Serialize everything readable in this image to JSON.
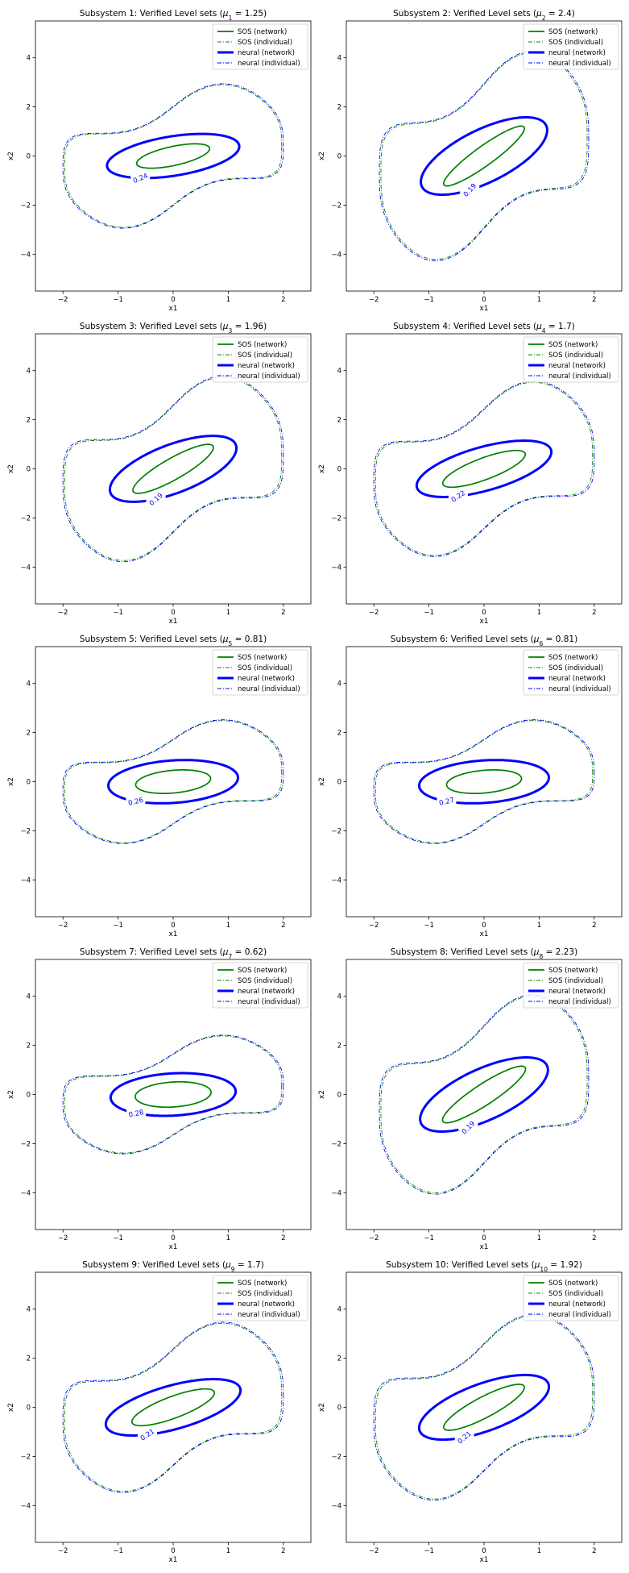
{
  "figure": {
    "grid": {
      "rows": 5,
      "cols": 2
    }
  },
  "colors": {
    "sos": "#008000",
    "neural": "#0000ff",
    "axis": "#000000"
  },
  "legend": {
    "position": "upper right",
    "entries": [
      {
        "label": "SOS (network)",
        "color": "#008000",
        "style": "solid",
        "weight": "normal"
      },
      {
        "label": "SOS (individual)",
        "color": "#008000",
        "style": "dashdot",
        "weight": "thin"
      },
      {
        "label": "neural (network)",
        "color": "#0000ff",
        "style": "solid",
        "weight": "bold"
      },
      {
        "label": "neural (individual)",
        "color": "#0000ff",
        "style": "dashdot",
        "weight": "thin"
      }
    ]
  },
  "chart_data": [
    {
      "type": "line",
      "subplot": 1,
      "title_prefix": "Subsystem 1: Verified Level sets (",
      "mu_sub": "1",
      "mu_value": "1.25",
      "xlabel": "x1",
      "ylabel": "x2",
      "xlim": [
        -2.5,
        2.5
      ],
      "ylim": [
        -5.5,
        5.5
      ],
      "xticks": [
        -2,
        -1,
        0,
        1,
        2
      ],
      "yticks": [
        -4,
        -2,
        0,
        2,
        4
      ],
      "contour_label": "0.24",
      "sos_network": {
        "a": 0.75,
        "b": 0.35,
        "angle_deg": 32
      },
      "neural_network": {
        "a": 1.3,
        "b": 0.75,
        "angle_deg": 28
      },
      "outer_extent": {
        "x": [
          -2.0,
          2.0
        ],
        "y": [
          -2.75,
          2.85
        ]
      }
    },
    {
      "type": "line",
      "subplot": 2,
      "title_prefix": "Subsystem 2: Verified Level sets (",
      "mu_sub": "2",
      "mu_value": "2.4",
      "xlabel": "x1",
      "ylabel": "x2",
      "xlim": [
        -2.5,
        2.5
      ],
      "ylim": [
        -5.5,
        5.5
      ],
      "xticks": [
        -2,
        -1,
        0,
        1,
        2
      ],
      "yticks": [
        -4,
        -2,
        0,
        2,
        4
      ],
      "contour_label": "0.19",
      "sos_network": {
        "a": 1.4,
        "b": 0.25,
        "angle_deg": 60
      },
      "neural_network": {
        "a": 1.8,
        "b": 0.75,
        "angle_deg": 58
      },
      "outer_extent": {
        "x": [
          -1.9,
          1.9
        ],
        "y": [
          -4.1,
          4.1
        ]
      }
    },
    {
      "type": "line",
      "subplot": 3,
      "title_prefix": "Subsystem 3: Verified Level sets (",
      "mu_sub": "3",
      "mu_value": "1.96",
      "xlabel": "x1",
      "ylabel": "x2",
      "xlim": [
        -2.5,
        2.5
      ],
      "ylim": [
        -5.5,
        5.5
      ],
      "xticks": [
        -2,
        -1,
        0,
        1,
        2
      ],
      "yticks": [
        -4,
        -2,
        0,
        2,
        4
      ],
      "contour_label": "0.19",
      "sos_network": {
        "a": 1.2,
        "b": 0.3,
        "angle_deg": 55
      },
      "neural_network": {
        "a": 1.6,
        "b": 0.75,
        "angle_deg": 52
      },
      "outer_extent": {
        "x": [
          -2.0,
          2.0
        ],
        "y": [
          -3.6,
          3.6
        ]
      }
    },
    {
      "type": "line",
      "subplot": 4,
      "title_prefix": "Subsystem 4: Verified Level sets (",
      "mu_sub": "4",
      "mu_value": "1.7",
      "xlabel": "x1",
      "ylabel": "x2",
      "xlim": [
        -2.5,
        2.5
      ],
      "ylim": [
        -5.5,
        5.5
      ],
      "xticks": [
        -2,
        -1,
        0,
        1,
        2
      ],
      "yticks": [
        -4,
        -2,
        0,
        2,
        4
      ],
      "contour_label": "0.22",
      "sos_network": {
        "a": 1.0,
        "b": 0.35,
        "angle_deg": 45
      },
      "neural_network": {
        "a": 1.5,
        "b": 0.75,
        "angle_deg": 42
      },
      "outer_extent": {
        "x": [
          -2.0,
          2.0
        ],
        "y": [
          -3.4,
          3.4
        ]
      }
    },
    {
      "type": "line",
      "subplot": 5,
      "title_prefix": "Subsystem 5: Verified Level sets (",
      "mu_sub": "5",
      "mu_value": "0.81",
      "xlabel": "x1",
      "ylabel": "x2",
      "xlim": [
        -2.5,
        2.5
      ],
      "ylim": [
        -5.5,
        5.5
      ],
      "xticks": [
        -2,
        -1,
        0,
        1,
        2
      ],
      "yticks": [
        -4,
        -2,
        0,
        2,
        4
      ],
      "contour_label": "0.26",
      "sos_network": {
        "a": 0.7,
        "b": 0.45,
        "angle_deg": 18
      },
      "neural_network": {
        "a": 1.2,
        "b": 0.85,
        "angle_deg": 16
      },
      "outer_extent": {
        "x": [
          -2.0,
          2.0
        ],
        "y": [
          -2.4,
          2.4
        ]
      }
    },
    {
      "type": "line",
      "subplot": 6,
      "title_prefix": "Subsystem 6: Verified Level sets (",
      "mu_sub": "6",
      "mu_value": "0.81",
      "xlabel": "x1",
      "ylabel": "x2",
      "xlim": [
        -2.5,
        2.5
      ],
      "ylim": [
        -5.5,
        5.5
      ],
      "xticks": [
        -2,
        -1,
        0,
        1,
        2
      ],
      "yticks": [
        -4,
        -2,
        0,
        2,
        4
      ],
      "contour_label": "0.27",
      "sos_network": {
        "a": 0.7,
        "b": 0.45,
        "angle_deg": 18
      },
      "neural_network": {
        "a": 1.2,
        "b": 0.85,
        "angle_deg": 16
      },
      "outer_extent": {
        "x": [
          -2.0,
          2.0
        ],
        "y": [
          -2.4,
          2.4
        ]
      }
    },
    {
      "type": "line",
      "subplot": 7,
      "title_prefix": "Subsystem 7: Verified Level sets (",
      "mu_sub": "7",
      "mu_value": "0.62",
      "xlabel": "x1",
      "ylabel": "x2",
      "xlim": [
        -2.5,
        2.5
      ],
      "ylim": [
        -5.5,
        5.5
      ],
      "xticks": [
        -2,
        -1,
        0,
        1,
        2
      ],
      "yticks": [
        -4,
        -2,
        0,
        2,
        4
      ],
      "contour_label": "0.28",
      "sos_network": {
        "a": 0.7,
        "b": 0.5,
        "angle_deg": 15
      },
      "neural_network": {
        "a": 1.15,
        "b": 0.85,
        "angle_deg": 14
      },
      "outer_extent": {
        "x": [
          -2.0,
          2.0
        ],
        "y": [
          -2.3,
          2.3
        ]
      }
    },
    {
      "type": "line",
      "subplot": 8,
      "title_prefix": "Subsystem 8: Verified Level sets (",
      "mu_sub": "8",
      "mu_value": "2.23",
      "xlabel": "x1",
      "ylabel": "x2",
      "xlim": [
        -2.5,
        2.5
      ],
      "ylim": [
        -5.5,
        5.5
      ],
      "xticks": [
        -2,
        -1,
        0,
        1,
        2
      ],
      "yticks": [
        -4,
        -2,
        0,
        2,
        4
      ],
      "contour_label": "0.19",
      "sos_network": {
        "a": 1.35,
        "b": 0.28,
        "angle_deg": 58
      },
      "neural_network": {
        "a": 1.75,
        "b": 0.75,
        "angle_deg": 56
      },
      "outer_extent": {
        "x": [
          -1.9,
          1.9
        ],
        "y": [
          -3.9,
          3.9
        ]
      }
    },
    {
      "type": "line",
      "subplot": 9,
      "title_prefix": "Subsystem 9: Verified Level sets (",
      "mu_sub": "9",
      "mu_value": "1.7",
      "xlabel": "x1",
      "ylabel": "x2",
      "xlim": [
        -2.5,
        2.5
      ],
      "ylim": [
        -5.5,
        5.5
      ],
      "xticks": [
        -2,
        -1,
        0,
        1,
        2
      ],
      "yticks": [
        -4,
        -2,
        0,
        2,
        4
      ],
      "contour_label": "0.21",
      "sos_network": {
        "a": 1.0,
        "b": 0.35,
        "angle_deg": 45
      },
      "neural_network": {
        "a": 1.5,
        "b": 0.75,
        "angle_deg": 42
      },
      "outer_extent": {
        "x": [
          -2.0,
          2.0
        ],
        "y": [
          -3.3,
          3.3
        ]
      }
    },
    {
      "type": "line",
      "subplot": 10,
      "title_prefix": "Subsystem 10: Verified Level sets (",
      "mu_sub": "10",
      "mu_value": "1.92",
      "xlabel": "x1",
      "ylabel": "x2",
      "xlim": [
        -2.5,
        2.5
      ],
      "ylim": [
        -5.5,
        5.5
      ],
      "xticks": [
        -2,
        -1,
        0,
        1,
        2
      ],
      "yticks": [
        -4,
        -2,
        0,
        2,
        4
      ],
      "contour_label": "0.21",
      "sos_network": {
        "a": 1.15,
        "b": 0.3,
        "angle_deg": 53
      },
      "neural_network": {
        "a": 1.6,
        "b": 0.75,
        "angle_deg": 50
      },
      "outer_extent": {
        "x": [
          -2.0,
          2.0
        ],
        "y": [
          -3.6,
          3.6
        ]
      }
    }
  ]
}
